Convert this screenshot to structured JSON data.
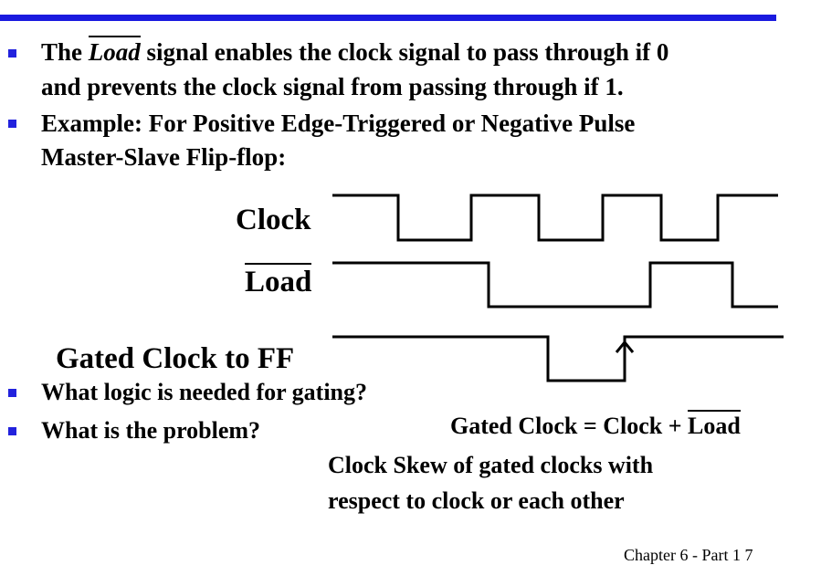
{
  "slide": {
    "bullets": [
      {
        "pre": "The ",
        "load": "Load",
        "post": " signal enables the clock signal to pass through if 0",
        "line2": "and prevents the clock signal from passing through if 1."
      },
      {
        "line1": "Example: For Positive Edge-Triggered  or Negative Pulse",
        "line2": "Master-Slave Flip-flop:"
      }
    ],
    "timing": {
      "clock_label": "Clock",
      "load_label": "Load",
      "gated_label": "Gated Clock to FF"
    },
    "questions": [
      "What logic is needed for gating?",
      "What is the problem?"
    ],
    "equation": {
      "prefix": "Gated Clock = Clock + ",
      "load": "Load"
    },
    "answer": {
      "line1": "Clock Skew of gated clocks with",
      "line2": "respect to clock or each other"
    },
    "footer": "Chapter 6 - Part 1    7",
    "colors": {
      "accent": "#1a1adf",
      "bullet": "#2222dd",
      "ink": "#000000"
    }
  }
}
